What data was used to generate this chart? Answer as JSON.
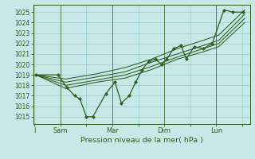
{
  "title": "Pression niveau de la mer( hPa )",
  "background_color": "#c8e8e8",
  "grid_color": "#99cccc",
  "line_color": "#2d5c1e",
  "ylim": [
    1014.3,
    1025.7
  ],
  "yticks": [
    1015,
    1016,
    1017,
    1018,
    1019,
    1020,
    1021,
    1022,
    1023,
    1024,
    1025
  ],
  "xtick_labels": [
    "I",
    "Sam",
    "",
    "Mar",
    "",
    "Dim",
    "",
    "Lun",
    ""
  ],
  "xtick_positions": [
    0,
    1,
    2,
    3,
    4,
    5,
    6,
    7,
    8
  ],
  "vlines": [
    1,
    3,
    5,
    7
  ],
  "main_line": {
    "x": [
      0.05,
      0.9,
      1.25,
      1.55,
      1.75,
      2.0,
      2.25,
      2.75,
      3.1,
      3.35,
      3.65,
      3.9,
      4.15,
      4.4,
      4.65,
      4.9,
      5.1,
      5.35,
      5.65,
      5.85,
      6.15,
      6.5,
      6.85,
      7.3,
      7.65,
      8.05
    ],
    "y": [
      1019,
      1019,
      1017.8,
      1017.0,
      1016.7,
      1015.0,
      1015.0,
      1017.2,
      1018.3,
      1016.3,
      1017.0,
      1018.3,
      1019.5,
      1020.3,
      1020.5,
      1020.0,
      1020.5,
      1021.5,
      1021.8,
      1020.5,
      1021.7,
      1021.5,
      1022.0,
      1025.2,
      1025.0,
      1025.0
    ]
  },
  "envelope_lines": [
    {
      "x": [
        0.05,
        1.2,
        2.4,
        3.5,
        4.5,
        5.5,
        6.5,
        7.1,
        8.1
      ],
      "y": [
        1019,
        1018.6,
        1019.1,
        1019.7,
        1020.5,
        1021.5,
        1022.3,
        1022.8,
        1025.2
      ]
    },
    {
      "x": [
        0.05,
        1.2,
        2.4,
        3.5,
        4.5,
        5.5,
        6.5,
        7.1,
        8.1
      ],
      "y": [
        1019,
        1018.3,
        1018.8,
        1019.3,
        1020.2,
        1021.0,
        1021.8,
        1022.3,
        1024.8
      ]
    },
    {
      "x": [
        0.05,
        1.2,
        2.4,
        3.5,
        4.5,
        5.5,
        6.5,
        7.1,
        8.1
      ],
      "y": [
        1019,
        1018.0,
        1018.5,
        1019.0,
        1019.8,
        1020.7,
        1021.5,
        1022.0,
        1024.4
      ]
    },
    {
      "x": [
        0.05,
        1.2,
        2.4,
        3.5,
        4.5,
        5.5,
        6.5,
        7.1,
        8.1
      ],
      "y": [
        1019,
        1017.7,
        1018.3,
        1018.7,
        1019.5,
        1020.5,
        1021.2,
        1021.7,
        1024.0
      ]
    }
  ]
}
